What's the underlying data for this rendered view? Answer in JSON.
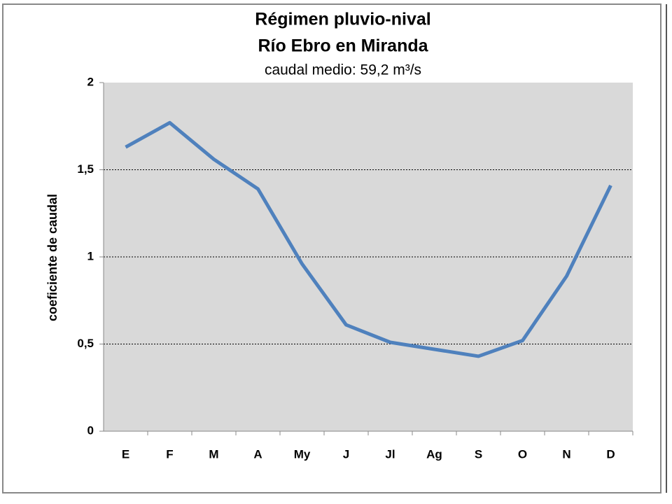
{
  "chart_data": {
    "type": "line",
    "title": "Régimen pluvio-nival",
    "subtitle": "Río Ebro en Miranda",
    "note": "caudal medio: 59,2 m³/s",
    "y_label": "coeficiente de caudal",
    "categories": [
      "E",
      "F",
      "M",
      "A",
      "My",
      "J",
      "Jl",
      "Ag",
      "S",
      "O",
      "N",
      "D"
    ],
    "series": [
      {
        "name": "coeficiente de caudal",
        "color": "#4f81bd",
        "values": [
          1.63,
          1.77,
          1.56,
          1.39,
          0.96,
          0.61,
          0.51,
          0.47,
          0.43,
          0.52,
          0.89,
          1.41
        ]
      }
    ],
    "ylim": [
      0,
      2
    ],
    "yticks": [
      0,
      {
        "value": 0.5,
        "label": "0,5"
      },
      1,
      {
        "value": 1.5,
        "label": "1,5"
      },
      2
    ],
    "grid": true
  }
}
